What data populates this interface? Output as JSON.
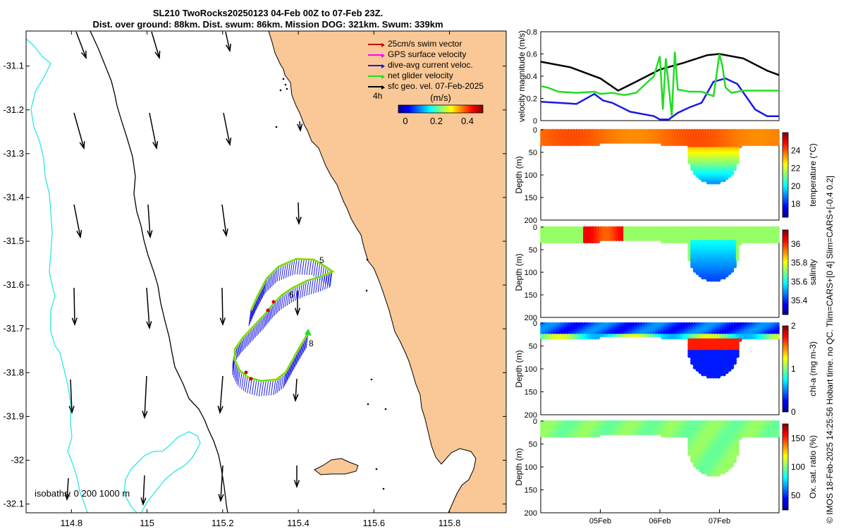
{
  "header": {
    "title_line1": "SL210 TwoRocks20250123 04-Feb 00Z to 07-Feb 23Z.",
    "title_line2": "Dist. over ground: 88km. Dist. swum: 86km. Mission DOG: 321km. Swum: 339km"
  },
  "map": {
    "lon_ticks": [
      "114.8",
      "115",
      "115.2",
      "115.4",
      "115.6",
      "115.8"
    ],
    "lon_values": [
      114.8,
      115.0,
      115.2,
      115.4,
      115.6,
      115.8
    ],
    "lat_ticks": [
      "-31.1",
      "-31.2",
      "-31.3",
      "-31.4",
      "-31.5",
      "-31.6",
      "-31.7",
      "-31.8",
      "-31.9",
      "-32",
      "-32.1"
    ],
    "lat_values": [
      -31.1,
      -31.2,
      -31.3,
      -31.4,
      -31.5,
      -31.6,
      -31.7,
      -31.8,
      -31.9,
      -32.0,
      -32.1
    ],
    "lon_range": [
      114.68,
      115.95
    ],
    "lat_range": [
      -31.02,
      -32.12
    ],
    "day_labels": [
      "5",
      "6",
      "8"
    ],
    "scale_label": "4h",
    "colorbar_unit": "(m/s)",
    "colorbar_ticks": [
      "0",
      "0.2",
      "0.4"
    ],
    "isobath_label": "isobaths: 0   200  1000 m",
    "colors": {
      "land": "#f9c896",
      "isobath_1000": "#2ee6e6",
      "isobath_200": "#000000",
      "dive_current": "#1a1ae6",
      "net_velocity": "#22dd22",
      "swim": "#cc0000",
      "gps": "#ff00ff",
      "geo": "#000000"
    }
  },
  "legend": [
    {
      "label": "25cm/s swim vector",
      "color": "#cc0000"
    },
    {
      "label": "GPS surface velocity",
      "color": "#ff00ff"
    },
    {
      "label": "dive-avg current veloc.",
      "color": "#1a1ae6"
    },
    {
      "label": "net glider velocity",
      "color": "#22dd22"
    },
    {
      "label": "sfc geo. vel. 07-Feb-2025",
      "color": "#000000"
    }
  ],
  "chart_data": [
    {
      "type": "line",
      "title": "",
      "ylabel": "velocity magnitude (m/s)",
      "ylim": [
        0,
        0.8
      ],
      "yticks": [
        "0",
        "0.2",
        "0.4",
        "0.6",
        "0.8"
      ],
      "x_days": [
        0,
        0.4,
        0.8,
        1.0,
        1.4,
        1.8,
        2.2,
        2.6,
        2.8,
        3.0,
        3.4,
        3.8,
        4.0
      ],
      "series": [
        {
          "name": "sfc geo. vel.",
          "color": "#000000",
          "x": [
            0,
            0.5,
            1.0,
            1.3,
            1.6,
            2.0,
            2.4,
            2.8,
            3.0,
            3.4,
            3.8,
            4.0
          ],
          "values": [
            0.53,
            0.48,
            0.38,
            0.27,
            0.35,
            0.46,
            0.52,
            0.59,
            0.6,
            0.56,
            0.45,
            0.41
          ]
        },
        {
          "name": "dive-avg current",
          "color": "#1a1ae6",
          "x": [
            0,
            0.3,
            0.6,
            0.9,
            1.05,
            1.2,
            1.5,
            1.9,
            2.0,
            2.15,
            2.3,
            2.5,
            2.7,
            2.9,
            3.1,
            3.3,
            3.6,
            3.8,
            4.0
          ],
          "values": [
            0.17,
            0.16,
            0.15,
            0.24,
            0.18,
            0.16,
            0.08,
            0.04,
            0.01,
            0.01,
            0.07,
            0.12,
            0.16,
            0.35,
            0.38,
            0.33,
            0.1,
            0.04,
            0.04
          ]
        },
        {
          "name": "net glider velocity",
          "color": "#22dd22",
          "x": [
            0,
            0.1,
            0.3,
            0.6,
            0.9,
            1.0,
            1.2,
            1.3,
            1.4,
            1.6,
            1.9,
            2.0,
            2.05,
            2.1,
            2.2,
            2.25,
            2.3,
            2.5,
            2.7,
            2.8,
            2.9,
            3.0,
            3.05,
            3.1,
            3.2,
            3.4,
            3.6,
            4.0
          ],
          "values": [
            0.31,
            0.3,
            0.26,
            0.25,
            0.26,
            0.24,
            0.25,
            0.24,
            0.23,
            0.25,
            0.4,
            0.58,
            0.1,
            0.56,
            0.04,
            0.62,
            0.28,
            0.26,
            0.26,
            0.24,
            0.22,
            0.6,
            0.49,
            0.3,
            0.25,
            0.27,
            0.27,
            0.27
          ]
        }
      ]
    },
    {
      "type": "heatmap",
      "ylabel": "Depth (m)",
      "colorbar_label": "temperature (°C)",
      "clim": [
        16.5,
        26
      ],
      "cticks": [
        "18",
        "20",
        "22",
        "24"
      ],
      "cvals": [
        18,
        20,
        22,
        24
      ],
      "yticks": [
        "0",
        "50",
        "100",
        "150",
        "200"
      ],
      "ylim": [
        0,
        200
      ]
    },
    {
      "type": "heatmap",
      "ylabel": "Depth (m)",
      "colorbar_label": "salinity",
      "clim": [
        35.25,
        36.15
      ],
      "cticks": [
        "35.4",
        "35.6",
        "35.8",
        "36"
      ],
      "cvals": [
        35.4,
        35.6,
        35.8,
        36.0
      ],
      "yticks": [
        "0",
        "50",
        "100",
        "150",
        "200"
      ],
      "ylim": [
        0,
        200
      ]
    },
    {
      "type": "heatmap",
      "ylabel": "Depth (m)",
      "colorbar_label": "chl-a (mg m-3)",
      "clim": [
        0,
        2
      ],
      "cticks": [
        "0",
        "1",
        "2"
      ],
      "cvals": [
        0,
        1,
        2
      ],
      "yticks": [
        "0",
        "50",
        "100",
        "150",
        "200"
      ],
      "ylim": [
        0,
        200
      ]
    },
    {
      "type": "heatmap",
      "ylabel": "Depth (m)",
      "colorbar_label": "Ox. sat. ratio (%)",
      "clim": [
        25,
        175
      ],
      "cticks": [
        "50",
        "100",
        "150"
      ],
      "cvals": [
        50,
        100,
        150
      ],
      "yticks": [
        "0",
        "50",
        "100",
        "150",
        "200"
      ],
      "ylim": [
        0,
        200
      ]
    }
  ],
  "time_axis": {
    "tick_labels": [
      "05Feb",
      "06Feb",
      "07Feb"
    ],
    "tick_days": [
      1,
      2,
      3
    ]
  },
  "side_note": "© IMOS 18-Feb-2025 14:25:56 Hobart time. no QC. Tlim=CARS+[0 4] Slim=CARS+[-0.4 0.2]"
}
